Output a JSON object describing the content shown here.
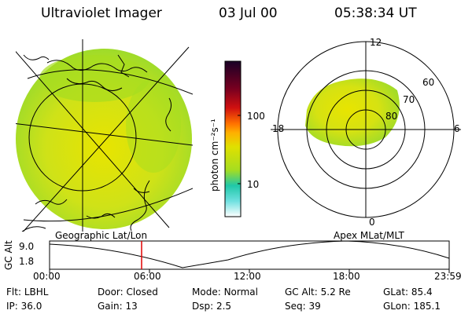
{
  "header": {
    "instrument": "Ultraviolet Imager",
    "date": "03 Jul 00",
    "time": "05:38:34 UT"
  },
  "colorbar": {
    "unit_label": "photon cm⁻²s⁻¹",
    "ticks": [
      "100",
      "10"
    ],
    "colors": [
      "#1a0026",
      "#7a0020",
      "#d01010",
      "#ff7000",
      "#ffb000",
      "#e0e000",
      "#a6dd20",
      "#20c8a8",
      "#6fe0e0",
      "#ffffff"
    ]
  },
  "polar_plot": {
    "mlt_labels": {
      "top": "12",
      "left": "18",
      "right": "6",
      "bottom": "0"
    },
    "lat_labels": [
      "60",
      "70",
      "80"
    ]
  },
  "timeline": {
    "left_title": "Geographic Lat/Lon",
    "right_title": "Apex MLat/MLT",
    "axis_name": "GC Alt",
    "y_ticks": [
      "9.0",
      "1.8"
    ],
    "x_ticks": [
      "00:00",
      "06:00",
      "12:00",
      "18:00",
      "23:59"
    ]
  },
  "footer": {
    "row1": [
      {
        "label": "Flt:",
        "value": "LBHL"
      },
      {
        "label": "Door:",
        "value": "Closed"
      },
      {
        "label": "Mode:",
        "value": "Normal"
      },
      {
        "label": "GC Alt:",
        "value": "5.2 Re"
      },
      {
        "label": "GLat:",
        "value": "85.4"
      }
    ],
    "row2": [
      {
        "label": "IP:",
        "value": "36.0"
      },
      {
        "label": "Gain:",
        "value": "13"
      },
      {
        "label": "Dsp:",
        "value": "2.5"
      },
      {
        "label": "Seq:",
        "value": "39"
      },
      {
        "label": "GLon:",
        "value": "185.1"
      }
    ]
  }
}
